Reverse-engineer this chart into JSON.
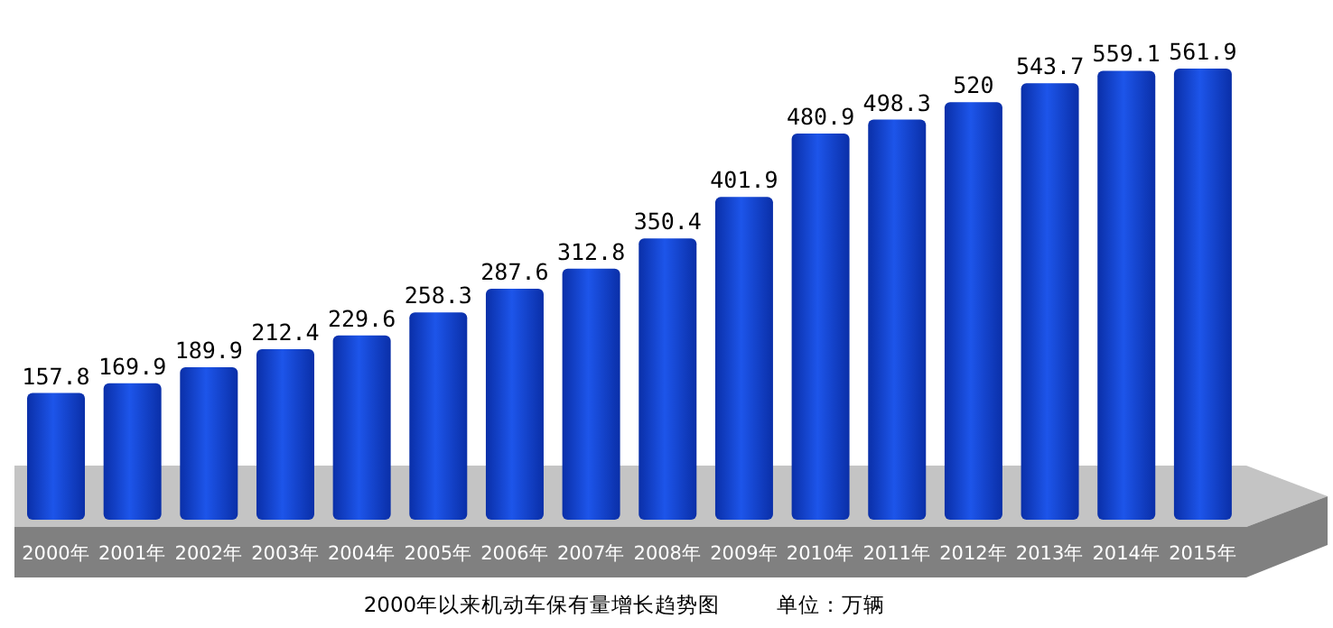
{
  "chart_data": {
    "type": "bar",
    "title": "2000年以来机动车保有量增长趋势图",
    "annotations": [
      "单位：万辆"
    ],
    "categories": [
      "2000年",
      "2001年",
      "2002年",
      "2003年",
      "2004年",
      "2005年",
      "2006年",
      "2007年",
      "2008年",
      "2009年",
      "2010年",
      "2011年",
      "2012年",
      "2013年",
      "2014年",
      "2015年"
    ],
    "values": [
      157.8,
      169.9,
      189.9,
      212.4,
      229.6,
      258.3,
      287.6,
      312.8,
      350.4,
      401.9,
      480.9,
      498.3,
      520,
      543.7,
      559.1,
      561.9
    ],
    "color": "#1d55ea",
    "data_labels": true
  }
}
